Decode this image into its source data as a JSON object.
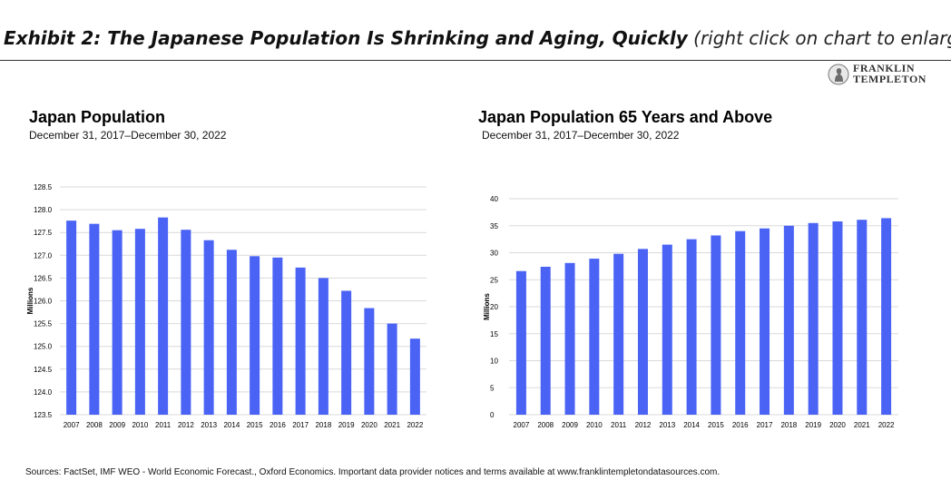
{
  "header": {
    "title_bold": "Exhibit 2: The Japanese Population Is Shrinking and Aging, Quickly",
    "title_note": "(right click on chart to enlarge)"
  },
  "logo": {
    "line1": "FRANKLIN",
    "line2": "TEMPLETON",
    "icon": "franklin-portrait-icon"
  },
  "colors": {
    "bar": "#4a63f5",
    "grid": "#d9d9d9",
    "text": "#000000"
  },
  "chart_data": [
    {
      "type": "bar",
      "title": "Japan Population",
      "subtitle": "December 31, 2017–December 30, 2022",
      "ylabel": "Millions",
      "xlabel": "",
      "ylim": [
        123.5,
        128.5
      ],
      "yticks": [
        "128.5",
        "128.0",
        "127.5",
        "127.0",
        "126.5",
        "126.0",
        "125.5",
        "125.0",
        "124.5",
        "124.0",
        "123.5"
      ],
      "categories": [
        "2007",
        "2008",
        "2009",
        "2010",
        "2011",
        "2012",
        "2013",
        "2014",
        "2015",
        "2016",
        "2017",
        "2018",
        "2019",
        "2020",
        "2021",
        "2022"
      ],
      "values": [
        127.76,
        127.69,
        127.55,
        127.58,
        127.83,
        127.56,
        127.33,
        127.12,
        126.98,
        126.95,
        126.73,
        126.5,
        126.22,
        125.84,
        125.5,
        125.17
      ],
      "grid": true,
      "legend": "none"
    },
    {
      "type": "bar",
      "title": "Japan Population 65 Years and Above",
      "subtitle": "December 31, 2017–December 30, 2022",
      "ylabel": "Millions",
      "xlabel": "",
      "ylim": [
        0,
        40
      ],
      "yticks": [
        "40",
        "35",
        "30",
        "25",
        "20",
        "15",
        "10",
        "5",
        "0"
      ],
      "categories": [
        "2007",
        "2008",
        "2009",
        "2010",
        "2011",
        "2012",
        "2013",
        "2014",
        "2015",
        "2016",
        "2017",
        "2018",
        "2019",
        "2020",
        "2021",
        "2022"
      ],
      "values": [
        26.6,
        27.4,
        28.1,
        28.9,
        29.8,
        30.7,
        31.5,
        32.5,
        33.2,
        34.0,
        34.5,
        35.0,
        35.5,
        35.8,
        36.1,
        36.4
      ],
      "grid": true,
      "legend": "none"
    }
  ],
  "footer": {
    "source": "Sources: FactSet, IMF WEO - World Economic Forecast., Oxford Economics. Important data provider notices and terms available at www.franklintempletondatasources.com."
  }
}
